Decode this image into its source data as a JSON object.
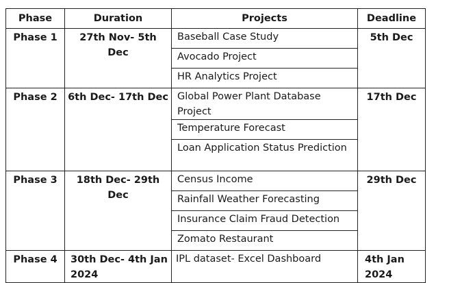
{
  "headers": [
    "Phase",
    "Duration",
    "Projects",
    "Deadline"
  ],
  "rows": [
    {
      "phase": "Phase 1",
      "duration": "27th Nov- 5th Dec",
      "deadline": "5th Dec",
      "projects": [
        "Baseball Case Study",
        "Avocado Project",
        "HR Analytics Project"
      ]
    },
    {
      "phase": "Phase 2",
      "duration": "6th Dec- 17th Dec",
      "deadline": "17th Dec",
      "projects": [
        "Global Power Plant Database Project",
        "Temperature Forecast",
        "Loan Application Status Prediction"
      ]
    },
    {
      "phase": "Phase 3",
      "duration": "18th Dec- 29th Dec",
      "deadline": "29th Dec",
      "projects": [
        "Census Income",
        "Rainfall Weather Forecasting",
        "Insurance Claim Fraud Detection",
        "Zomato Restaurant"
      ]
    },
    {
      "phase": "Phase 4",
      "duration": "30th Dec- 4th Jan 2024",
      "deadline": "4th Jan 2024",
      "projects": [
        "IPL dataset- Excel Dashboard"
      ]
    }
  ]
}
